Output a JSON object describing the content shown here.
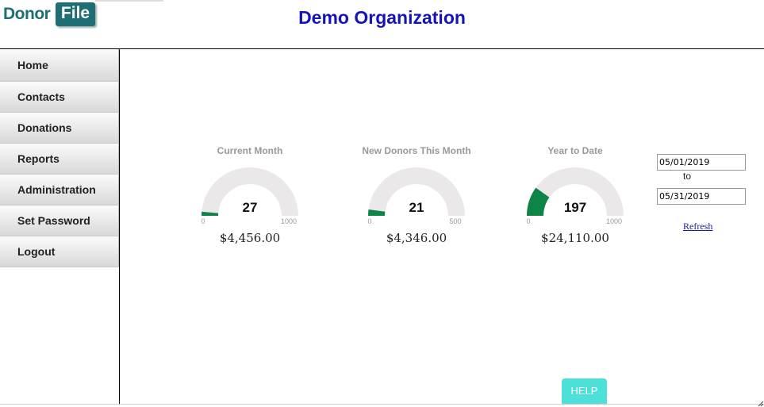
{
  "logo": {
    "part1": "Donor",
    "part2": "File"
  },
  "org_title": "Demo Organization",
  "nav": [
    {
      "label": "Home"
    },
    {
      "label": "Contacts"
    },
    {
      "label": "Donations"
    },
    {
      "label": "Reports"
    },
    {
      "label": "Administration"
    },
    {
      "label": "Set Password"
    },
    {
      "label": "Logout"
    }
  ],
  "gauges": [
    {
      "title": "Current Month",
      "value": "27",
      "min": "0",
      "max": "1000",
      "amount": "$4,456.00",
      "fraction": 0.027
    },
    {
      "title": "New Donors This Month",
      "value": "21",
      "min": "0",
      "max": "500",
      "amount": "$4,346.00",
      "fraction": 0.042
    },
    {
      "title": "Year to Date",
      "value": "197",
      "min": "0",
      "max": "1000",
      "amount": "$24,110.00",
      "fraction": 0.197
    }
  ],
  "date_range": {
    "start": "05/01/2019",
    "to_label": "to",
    "end": "05/31/2019",
    "refresh_label": "Refresh"
  },
  "help_label": "HELP",
  "colors": {
    "gauge_fill": "#0f8447",
    "gauge_track": "#eae8e8",
    "help_bg": "#4de0d8",
    "title": "#1515b5"
  }
}
